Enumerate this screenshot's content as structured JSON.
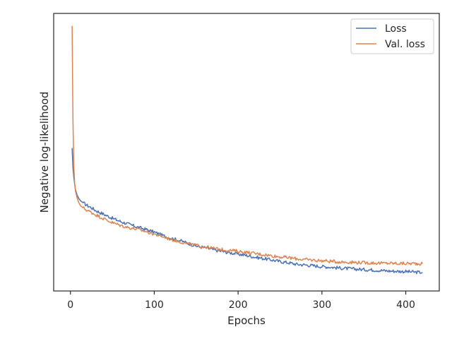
{
  "chart_data": {
    "type": "line",
    "title": "",
    "xlabel": "Epochs",
    "ylabel": "Negative log-likelihood",
    "xlim": [
      -20,
      440
    ],
    "ylim": [
      0.0,
      1.0
    ],
    "xticks": [
      0,
      100,
      200,
      300,
      400
    ],
    "yticks": [],
    "grid": false,
    "legend": {
      "placement": "top-right"
    },
    "series": [
      {
        "name": "Loss",
        "color": "#4c72b0",
        "x": [
          2,
          3,
          4,
          5,
          6,
          8,
          10,
          12,
          15,
          20,
          25,
          30,
          40,
          50,
          60,
          70,
          80,
          90,
          100,
          110,
          120,
          130,
          140,
          150,
          160,
          170,
          180,
          190,
          200,
          210,
          220,
          230,
          240,
          250,
          260,
          270,
          280,
          290,
          300,
          310,
          320,
          330,
          340,
          350,
          360,
          370,
          380,
          390,
          400,
          410,
          420
        ],
        "y": [
          0.515,
          0.445,
          0.41,
          0.385,
          0.365,
          0.345,
          0.333,
          0.325,
          0.318,
          0.308,
          0.3,
          0.29,
          0.276,
          0.262,
          0.25,
          0.24,
          0.23,
          0.222,
          0.212,
          0.2,
          0.19,
          0.182,
          0.172,
          0.162,
          0.156,
          0.149,
          0.143,
          0.138,
          0.133,
          0.128,
          0.122,
          0.117,
          0.112,
          0.106,
          0.102,
          0.096,
          0.094,
          0.091,
          0.088,
          0.086,
          0.083,
          0.081,
          0.079,
          0.077,
          0.076,
          0.074,
          0.072,
          0.071,
          0.07,
          0.068,
          0.067
        ]
      },
      {
        "name": "Val. loss",
        "color": "#dd8452",
        "x": [
          2,
          3,
          4,
          5,
          6,
          8,
          10,
          12,
          15,
          20,
          25,
          30,
          40,
          50,
          60,
          70,
          80,
          90,
          100,
          110,
          120,
          130,
          140,
          150,
          160,
          170,
          180,
          190,
          200,
          210,
          220,
          230,
          240,
          250,
          260,
          270,
          280,
          290,
          300,
          310,
          320,
          330,
          340,
          350,
          360,
          370,
          380,
          390,
          400,
          410,
          420
        ],
        "y": [
          0.955,
          0.62,
          0.45,
          0.39,
          0.36,
          0.335,
          0.318,
          0.307,
          0.3,
          0.29,
          0.283,
          0.275,
          0.26,
          0.246,
          0.236,
          0.228,
          0.222,
          0.214,
          0.205,
          0.196,
          0.186,
          0.178,
          0.17,
          0.164,
          0.159,
          0.154,
          0.149,
          0.146,
          0.143,
          0.139,
          0.135,
          0.131,
          0.127,
          0.123,
          0.12,
          0.116,
          0.113,
          0.111,
          0.109,
          0.107,
          0.105,
          0.104,
          0.103,
          0.102,
          0.101,
          0.1,
          0.1,
          0.099,
          0.099,
          0.099,
          0.098
        ]
      }
    ]
  }
}
